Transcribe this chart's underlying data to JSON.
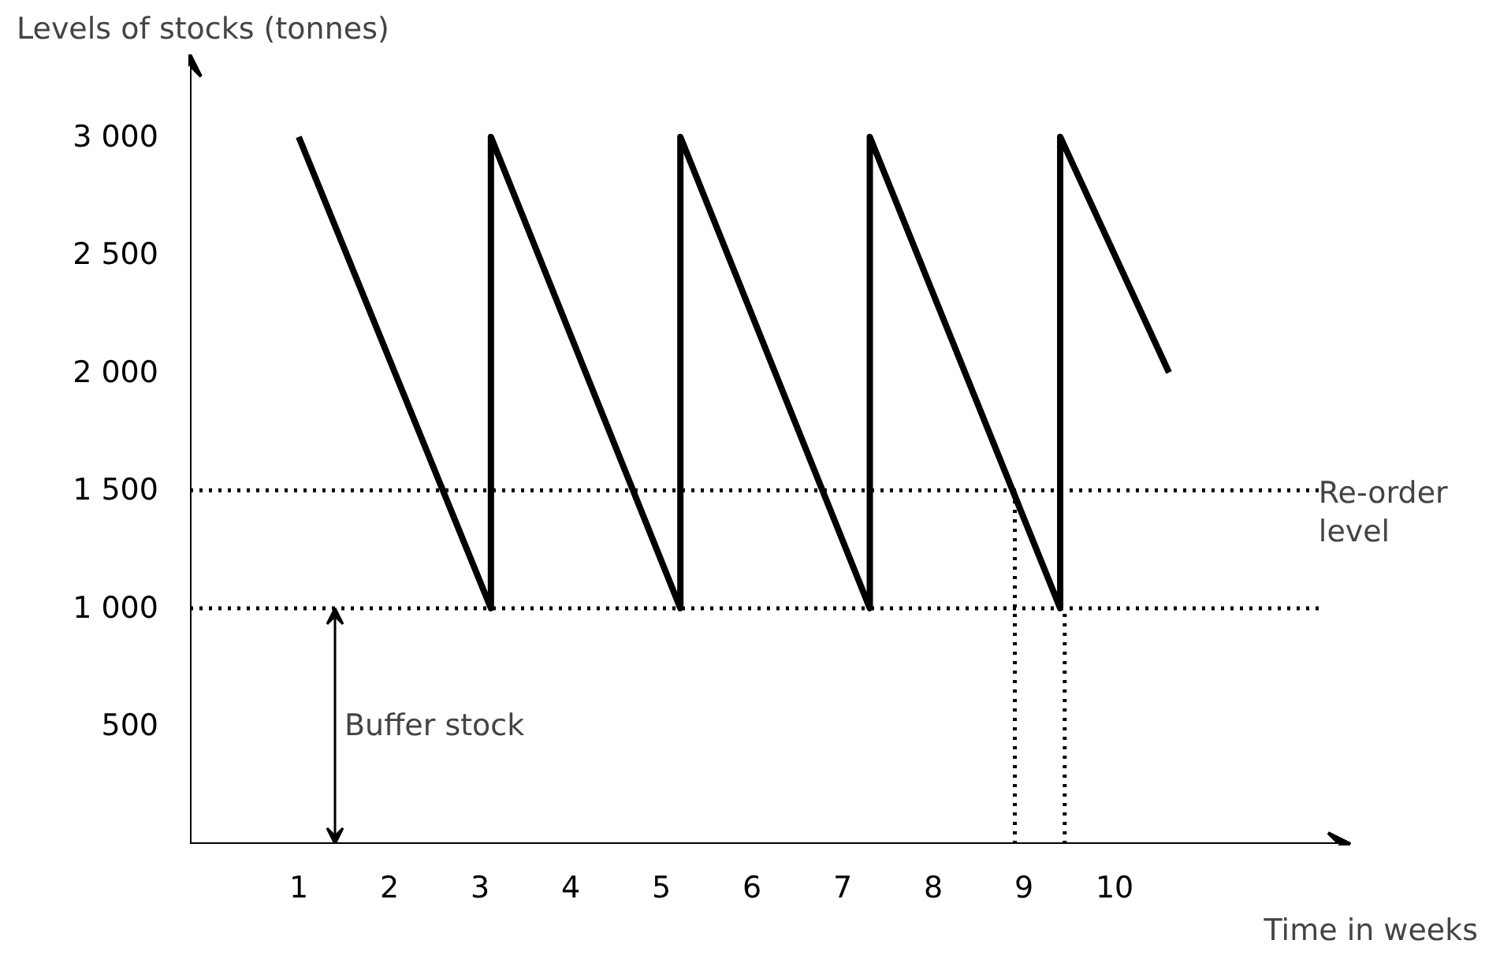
{
  "chart_data": {
    "type": "line",
    "ylabel": "Levels of stocks (tonnes)",
    "xlabel": "Time in weeks",
    "xlim": [
      -0.2,
      12.6
    ],
    "ylim": [
      0,
      3350
    ],
    "xticks": [
      1,
      2,
      3,
      4,
      5,
      6,
      7,
      8,
      9,
      10
    ],
    "yticks": [
      {
        "value": 500,
        "label": "500"
      },
      {
        "value": 1000,
        "label": "1 000"
      },
      {
        "value": 1500,
        "label": "1 500"
      },
      {
        "value": 2000,
        "label": "2 000"
      },
      {
        "value": 2500,
        "label": "2 500"
      },
      {
        "value": 3000,
        "label": "3 000"
      }
    ],
    "series": [
      {
        "color": "#000000",
        "line_style": "solid",
        "x": [
          1,
          3.12,
          3.12,
          5.21,
          5.21,
          7.3,
          7.3,
          9.4,
          9.4,
          10.6
        ],
        "values": [
          3000,
          1000,
          3000,
          1000,
          3000,
          1000,
          3000,
          1000,
          3000,
          2000
        ]
      },
      {
        "color": "#000000",
        "line_style": "dotted",
        "x": [
          8.9,
          8.9
        ],
        "values": [
          0,
          1500
        ]
      },
      {
        "color": "#000000",
        "line_style": "dotted",
        "x": [
          9.45,
          9.45
        ],
        "values": [
          0,
          1000
        ]
      }
    ],
    "ref_lines": [
      {
        "axis": "y",
        "value": 1500,
        "label": "Re-order level",
        "line_style": "dotted",
        "color": "#000000"
      },
      {
        "axis": "y",
        "value": 1000,
        "line_style": "dotted",
        "color": "#000000"
      }
    ],
    "annotations": [
      "Buffer stock"
    ],
    "marker": "none"
  }
}
